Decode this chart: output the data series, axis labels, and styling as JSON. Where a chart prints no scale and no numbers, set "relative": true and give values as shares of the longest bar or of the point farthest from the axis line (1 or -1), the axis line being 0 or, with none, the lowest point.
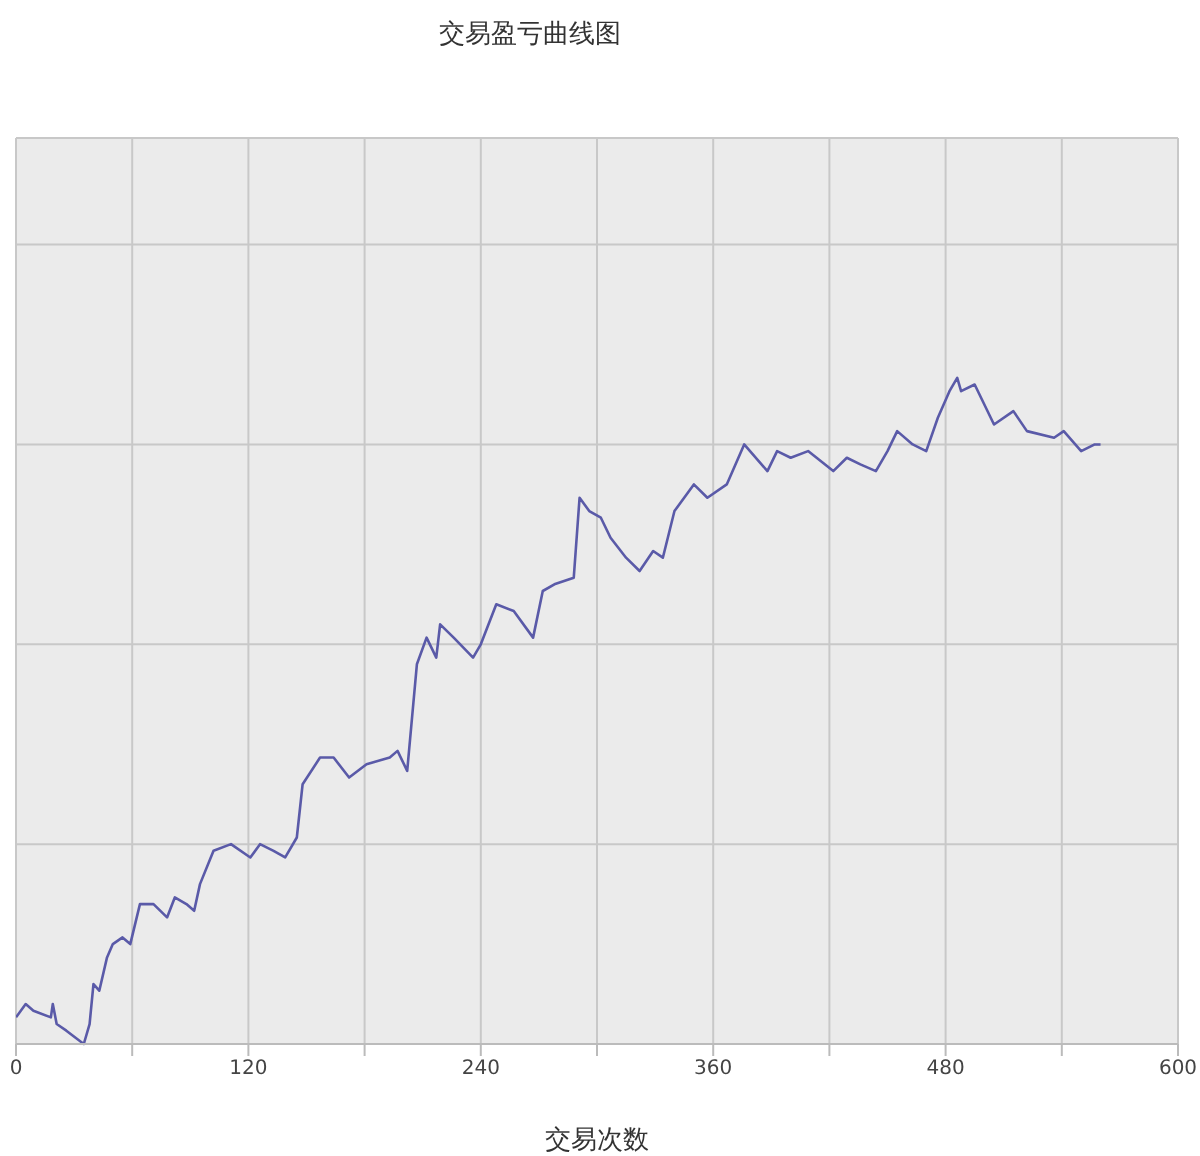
{
  "chart_data": {
    "type": "line",
    "title": "交易盈亏曲线图",
    "xlabel": "交易次数",
    "relative": true,
    "x": [
      0,
      5,
      9,
      18,
      19,
      21,
      26,
      35,
      38,
      40,
      43,
      47,
      50,
      55,
      59,
      64,
      71,
      78,
      82,
      88,
      92,
      95,
      102,
      111,
      121,
      126,
      133,
      139,
      145,
      148,
      157,
      164,
      172,
      181,
      193,
      197,
      202,
      207,
      212,
      217,
      219,
      226,
      236,
      240,
      248,
      257,
      267,
      272,
      278,
      288,
      291,
      296,
      302,
      307,
      315,
      322,
      329,
      334,
      340,
      350,
      357,
      367,
      376,
      388,
      393,
      400,
      409,
      422,
      429,
      436,
      444,
      450,
      455,
      463,
      470,
      476,
      482,
      486,
      488,
      495,
      505,
      515,
      522,
      536,
      541,
      550,
      557,
      560
    ],
    "series": [
      {
        "color": "#5a5aa8",
        "values": [
          0.04,
          0.06,
          0.05,
          0.04,
          0.06,
          0.03,
          0.02,
          0,
          0.03,
          0.09,
          0.08,
          0.13,
          0.15,
          0.16,
          0.15,
          0.21,
          0.21,
          0.19,
          0.22,
          0.21,
          0.2,
          0.24,
          0.29,
          0.3,
          0.28,
          0.3,
          0.29,
          0.28,
          0.31,
          0.39,
          0.43,
          0.43,
          0.4,
          0.42,
          0.43,
          0.44,
          0.41,
          0.57,
          0.61,
          0.58,
          0.63,
          0.61,
          0.58,
          0.6,
          0.66,
          0.65,
          0.61,
          0.68,
          0.69,
          0.7,
          0.82,
          0.8,
          0.79,
          0.76,
          0.73,
          0.71,
          0.74,
          0.73,
          0.8,
          0.84,
          0.82,
          0.84,
          0.9,
          0.86,
          0.89,
          0.88,
          0.89,
          0.86,
          0.88,
          0.87,
          0.86,
          0.89,
          0.92,
          0.9,
          0.89,
          0.94,
          0.98,
          1,
          0.98,
          0.99,
          0.93,
          0.95,
          0.92,
          0.91,
          0.92,
          0.89,
          0.9,
          0.9
        ]
      }
    ],
    "xlim": [
      0,
      600
    ],
    "xticks": [
      0,
      {
        "value": 60,
        "label": null
      },
      120,
      {
        "value": 180,
        "label": null
      },
      240,
      {
        "value": 300,
        "label": null
      },
      360,
      {
        "value": 420,
        "label": null
      },
      480,
      {
        "value": 540,
        "label": null
      },
      600
    ],
    "grid": true,
    "legend": false,
    "marker": "none",
    "line_style": "solid"
  }
}
